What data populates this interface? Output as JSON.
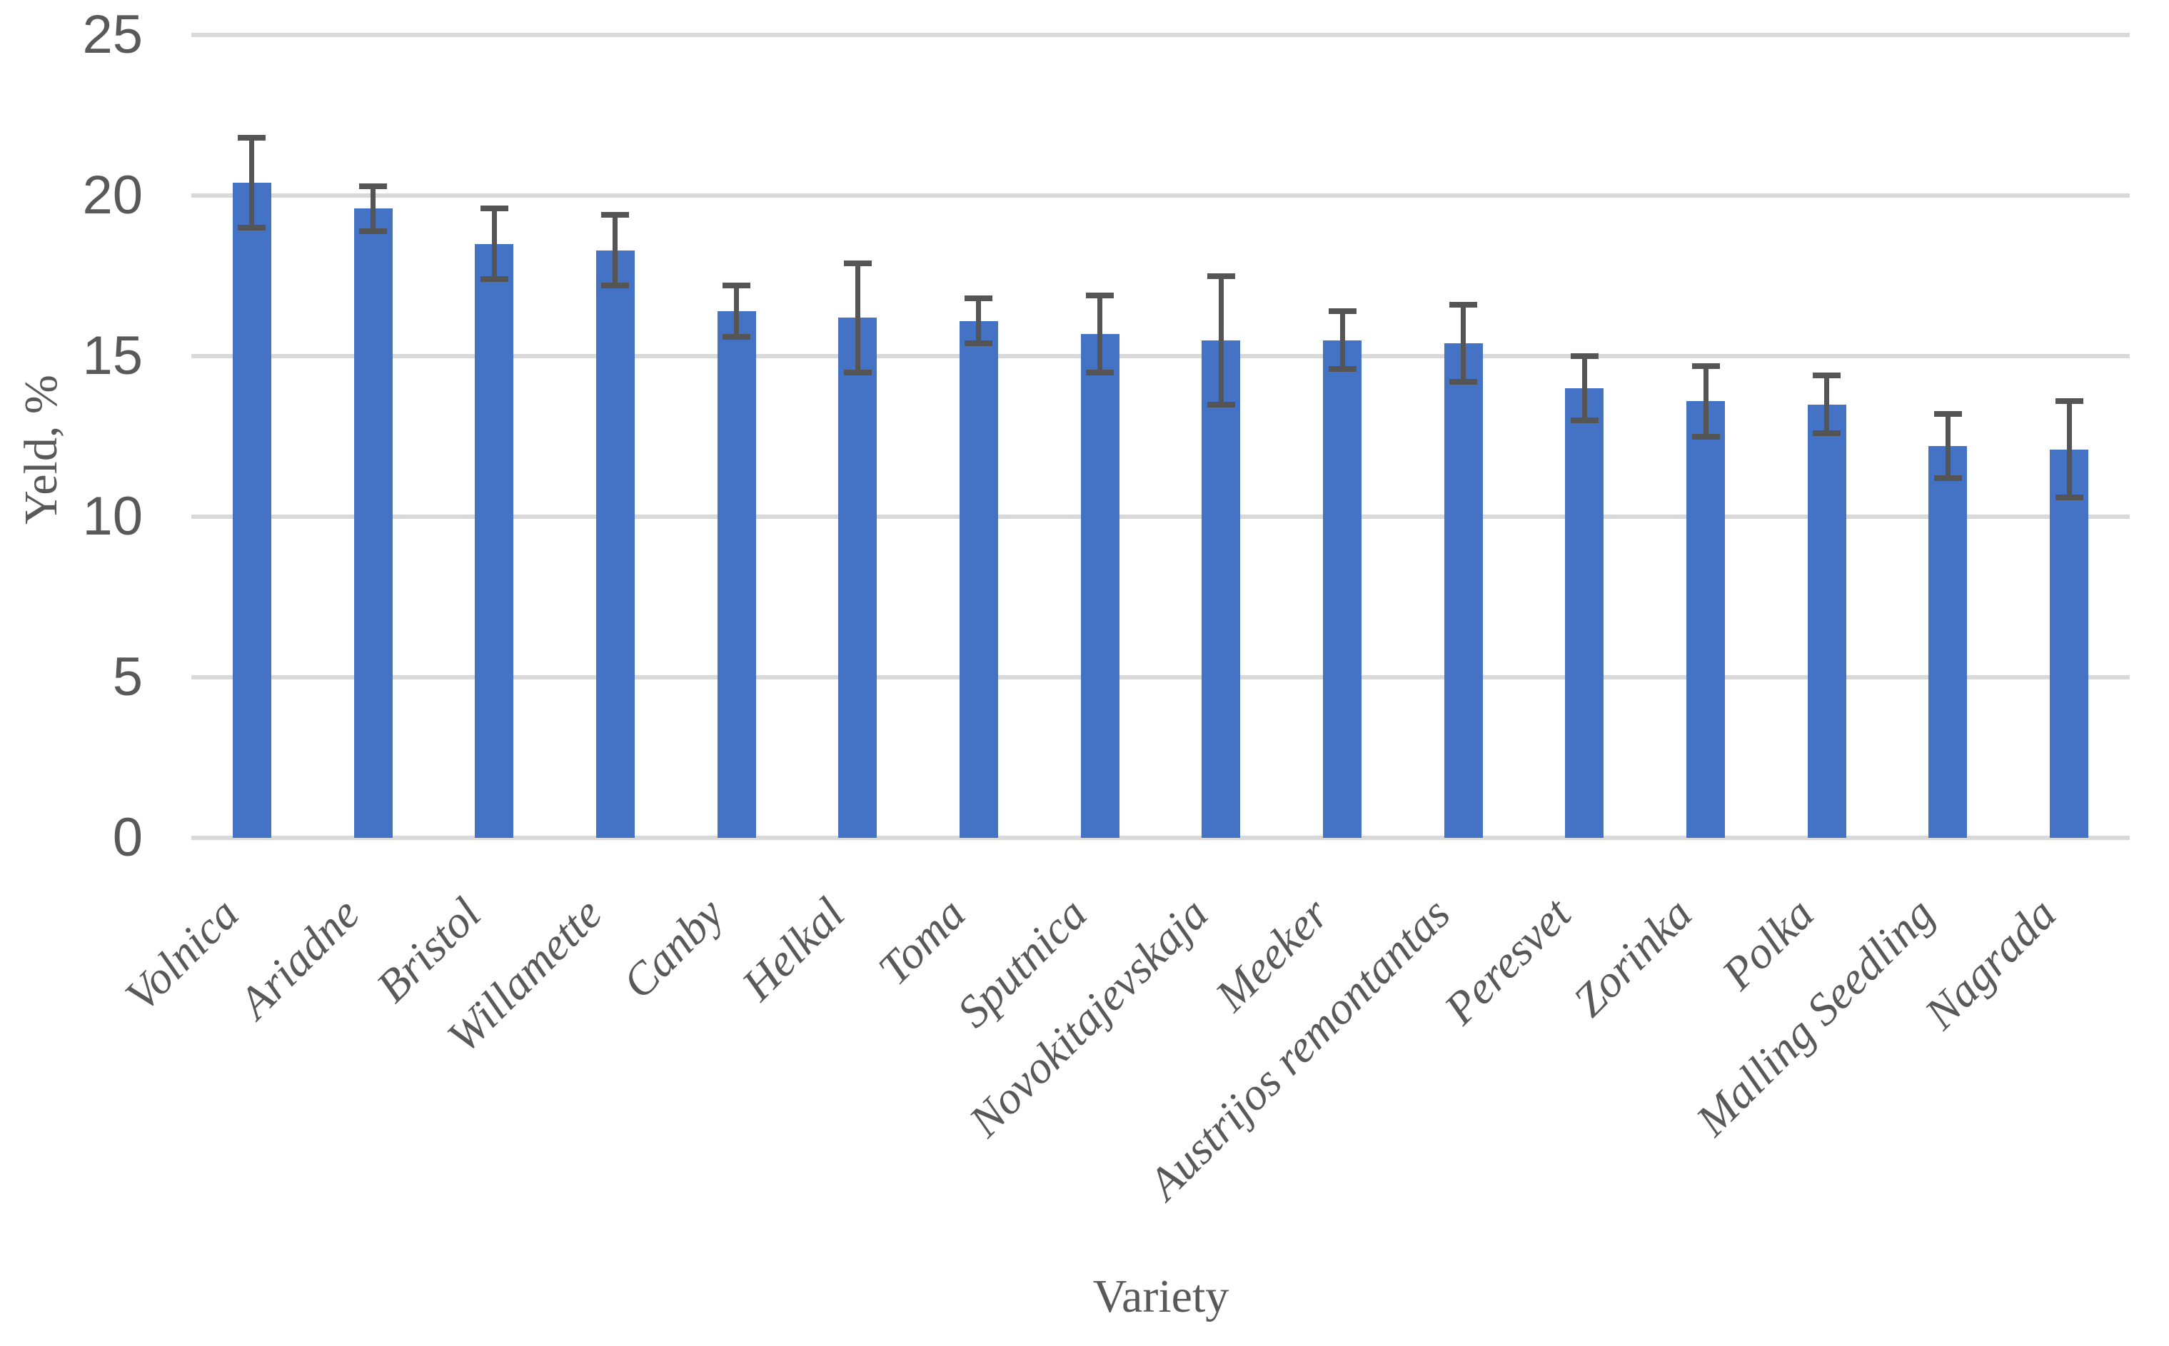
{
  "chart_data": {
    "type": "bar",
    "title": "",
    "xlabel": "Variety",
    "ylabel": "Yeld, %",
    "categories": [
      "Volnica",
      "Ariadne",
      "Bristol",
      "Willamette",
      "Canby",
      "Helkal",
      "Toma",
      "Sputnica",
      "Novokitajevskaja",
      "Meeker",
      "Austrijos remontantas",
      "Peresvet",
      "Zorinka",
      "Polka",
      "Malling Seedling",
      "Nagrada"
    ],
    "values": [
      20.4,
      19.6,
      18.5,
      18.3,
      16.4,
      16.2,
      16.1,
      15.7,
      15.5,
      15.5,
      15.4,
      14.0,
      13.6,
      13.5,
      12.2,
      12.1
    ],
    "errors": [
      1.4,
      0.7,
      1.1,
      1.1,
      0.8,
      1.7,
      0.7,
      1.2,
      2.0,
      0.9,
      1.2,
      1.0,
      1.1,
      0.9,
      1.0,
      1.5
    ],
    "ylim": [
      0,
      25
    ],
    "yticks": [
      0,
      5,
      10,
      15,
      20,
      25
    ],
    "grid": "horizontal-on",
    "legend": "none",
    "bar_color": "#4472C4",
    "error_bar_color": "#555555",
    "gridline_color": "#D9D9D9",
    "text_color": "#595959"
  }
}
